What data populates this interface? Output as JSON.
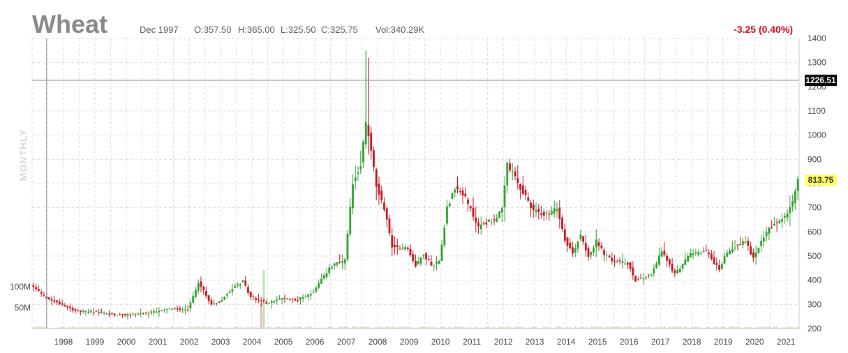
{
  "header": {
    "title": "Wheat",
    "date": "Dec 1997",
    "open": "O:357.50",
    "high": "H:365.00",
    "low": "L:325.50",
    "close": "C:325.75",
    "volume": "Vol:340.29K",
    "change": "-3.25 (0.40%)"
  },
  "period_label": "MONTHLY",
  "colors": {
    "up": "#2ca02c",
    "down": "#c0141e",
    "grid": "#dcdcdc",
    "crosshair": "#999999",
    "price_tag": "#ffff66",
    "cursor_tag": "#000000"
  },
  "chart_data": {
    "type": "candlestick",
    "title": "Wheat",
    "frequency": "monthly",
    "x_range": [
      "1997-07",
      "2021-11"
    ],
    "ylim": [
      200,
      1400
    ],
    "y_ticks": [
      200,
      300,
      400,
      500,
      600,
      700,
      800,
      900,
      1000,
      1100,
      1200,
      1300,
      1400
    ],
    "x_ticks": [
      "1998",
      "1999",
      "2000",
      "2001",
      "2002",
      "2003",
      "2004",
      "2005",
      "2006",
      "2007",
      "2008",
      "2009",
      "2010",
      "2011",
      "2012",
      "2013",
      "2014",
      "2015",
      "2016",
      "2017",
      "2018",
      "2019",
      "2020",
      "2021"
    ],
    "grid": true,
    "last_price": "813.75",
    "crosshair_price": "1226.51",
    "crosshair_date": "1997-12",
    "close_path": [
      [
        "1997-07",
        370
      ],
      [
        "1997-12",
        326
      ],
      [
        "1998-06",
        300
      ],
      [
        "1998-12",
        270
      ],
      [
        "1999-06",
        270
      ],
      [
        "1999-12",
        260
      ],
      [
        "2000-06",
        255
      ],
      [
        "2000-12",
        262
      ],
      [
        "2001-06",
        270
      ],
      [
        "2001-12",
        282
      ],
      [
        "2002-06",
        280
      ],
      [
        "2002-10",
        390
      ],
      [
        "2003-03",
        300
      ],
      [
        "2003-06",
        310
      ],
      [
        "2003-12",
        380
      ],
      [
        "2004-03",
        395
      ],
      [
        "2004-06",
        330
      ],
      [
        "2004-12",
        305
      ],
      [
        "2005-06",
        325
      ],
      [
        "2005-12",
        320
      ],
      [
        "2006-06",
        350
      ],
      [
        "2006-12",
        450
      ],
      [
        "2007-03",
        470
      ],
      [
        "2007-06",
        480
      ],
      [
        "2007-09",
        800
      ],
      [
        "2007-12",
        880
      ],
      [
        "2008-02",
        1050
      ],
      [
        "2008-03",
        1000
      ],
      [
        "2008-06",
        790
      ],
      [
        "2008-09",
        700
      ],
      [
        "2008-12",
        540
      ],
      [
        "2009-06",
        530
      ],
      [
        "2009-09",
        460
      ],
      [
        "2009-12",
        510
      ],
      [
        "2010-03",
        460
      ],
      [
        "2010-06",
        480
      ],
      [
        "2010-09",
        700
      ],
      [
        "2010-12",
        780
      ],
      [
        "2011-03",
        760
      ],
      [
        "2011-06",
        690
      ],
      [
        "2011-09",
        620
      ],
      [
        "2011-12",
        640
      ],
      [
        "2012-03",
        650
      ],
      [
        "2012-06",
        690
      ],
      [
        "2012-08",
        880
      ],
      [
        "2012-12",
        800
      ],
      [
        "2013-06",
        690
      ],
      [
        "2013-12",
        670
      ],
      [
        "2014-03",
        700
      ],
      [
        "2014-06",
        570
      ],
      [
        "2014-09",
        510
      ],
      [
        "2014-12",
        590
      ],
      [
        "2015-03",
        500
      ],
      [
        "2015-06",
        560
      ],
      [
        "2015-09",
        510
      ],
      [
        "2015-12",
        480
      ],
      [
        "2016-06",
        470
      ],
      [
        "2016-09",
        400
      ],
      [
        "2016-12",
        410
      ],
      [
        "2017-03",
        425
      ],
      [
        "2017-07",
        520
      ],
      [
        "2017-12",
        425
      ],
      [
        "2018-06",
        510
      ],
      [
        "2018-12",
        520
      ],
      [
        "2019-05",
        440
      ],
      [
        "2019-07",
        500
      ],
      [
        "2019-12",
        550
      ],
      [
        "2020-03",
        560
      ],
      [
        "2020-06",
        490
      ],
      [
        "2020-09",
        560
      ],
      [
        "2020-12",
        610
      ],
      [
        "2021-03",
        640
      ],
      [
        "2021-06",
        660
      ],
      [
        "2021-09",
        720
      ],
      [
        "2021-11",
        814
      ]
    ],
    "volume_axis": {
      "labels": [
        "100M",
        "50M"
      ],
      "values": [
        100,
        50
      ],
      "unit": "M"
    },
    "volume_spikes": [
      [
        "2004-10",
        60
      ],
      [
        "2004-11",
        140
      ]
    ]
  }
}
